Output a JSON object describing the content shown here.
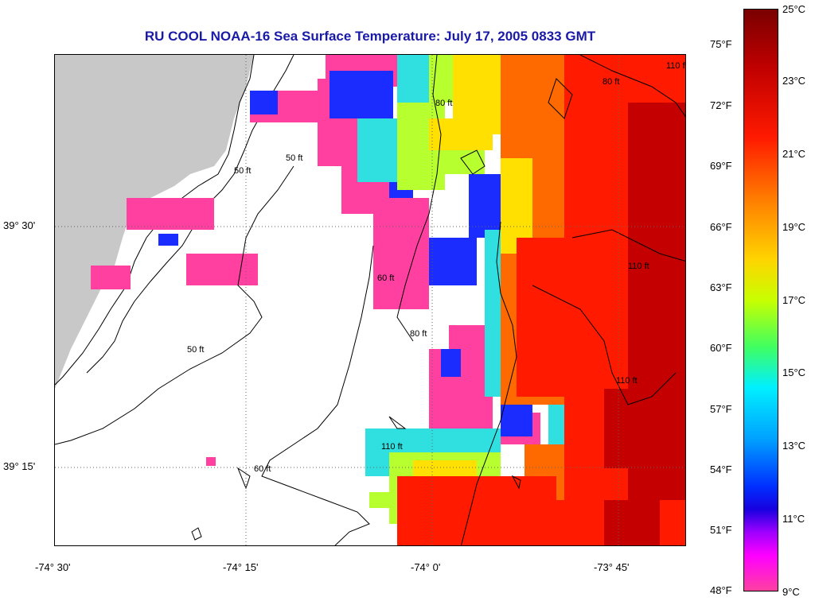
{
  "title": "RU COOL  NOAA-16  Sea Surface Temperature:  July 17, 2005 0833 GMT",
  "map": {
    "lon_labels": [
      "-74° 30'",
      "-74° 15'",
      "-74° 0'",
      "-73° 45'"
    ],
    "lat_labels": [
      "39° 30'",
      "39° 15'"
    ],
    "depth_labels": [
      "50 ft",
      "50 ft",
      "50 ft",
      "60 ft",
      "60 ft",
      "80 ft",
      "80 ft",
      "80 ft",
      "110 ft",
      "110 ft",
      "110 ft",
      "110 ft"
    ]
  },
  "colorbar": {
    "fahrenheit": [
      "75°F",
      "72°F",
      "69°F",
      "66°F",
      "63°F",
      "60°F",
      "57°F",
      "54°F",
      "51°F",
      "48°F"
    ],
    "celsius": [
      "25°C",
      "23°C",
      "21°C",
      "19°C",
      "17°C",
      "15°C",
      "13°C",
      "11°C",
      "9°C"
    ]
  },
  "colors": {
    "land": "#c8c8c8",
    "title": "#1a1aa8",
    "cold": "#ff40a0",
    "warm": "#c00000"
  }
}
